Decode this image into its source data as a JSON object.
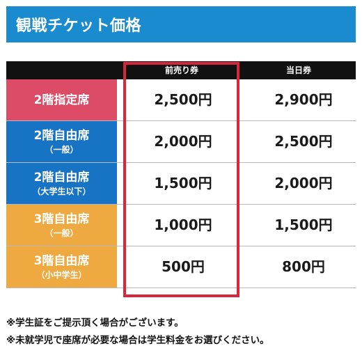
{
  "title": "観戦チケット価格",
  "headers": {
    "advance": "前売り券",
    "same_day": "当日券"
  },
  "rows": [
    {
      "category": "2階指定席",
      "sub": "",
      "color": "#dc4c67",
      "advance": "2,500円",
      "same_day": "2,900円"
    },
    {
      "category": "2階自由席",
      "sub": "（一般）",
      "color": "#1773c4",
      "advance": "2,000円",
      "same_day": "2,500円"
    },
    {
      "category": "2階自由席",
      "sub": "（大学生以下）",
      "color": "#1773c4",
      "advance": "1,500円",
      "same_day": "2,000円"
    },
    {
      "category": "3階自由席",
      "sub": "（一般）",
      "color": "#eeaa41",
      "advance": "1,000円",
      "same_day": "1,500円"
    },
    {
      "category": "3階自由席",
      "sub": "（小中学生）",
      "color": "#eeaa41",
      "advance": "500円",
      "same_day": "800円"
    }
  ],
  "notes": [
    "※学生証をご提示頂く場合がございます。",
    "※未就学児で座席が必要な場合は学生料金をお選びください。"
  ],
  "colors": {
    "title_bg": "#1b8bd0",
    "header_bg": "#111111",
    "highlight": "#d7263d"
  }
}
